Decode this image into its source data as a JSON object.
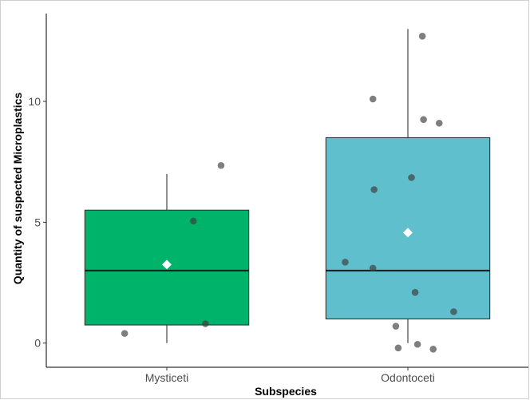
{
  "chart_data": {
    "type": "boxplot",
    "title": "",
    "xlabel": "Subspecies",
    "ylabel": "Quantity of suspected Microplastics",
    "ylim": [
      -1,
      13.8
    ],
    "yticks": [
      0,
      5,
      10
    ],
    "categories": [
      "Mysticeti",
      "Odontoceti"
    ],
    "boxes": [
      {
        "name": "Mysticeti",
        "color": "#00b36b",
        "whisker_low": 0,
        "q1": 0.75,
        "median": 3,
        "q3": 5.5,
        "whisker_high": 7,
        "mean": 3.25
      },
      {
        "name": "Odontoceti",
        "color": "#5fbfcc",
        "whisker_low": 0,
        "q1": 1,
        "median": 3,
        "q3": 8.5,
        "whisker_high": 13,
        "mean": 4.57
      }
    ],
    "points": [
      {
        "category": "Mysticeti",
        "x_offset": -0.35,
        "y": 0.4
      },
      {
        "category": "Mysticeti",
        "x_offset": 0.22,
        "y": 5.05
      },
      {
        "category": "Mysticeti",
        "x_offset": 0.32,
        "y": 0.8
      },
      {
        "category": "Mysticeti",
        "x_offset": 0.45,
        "y": 7.35
      },
      {
        "category": "Odontoceti",
        "x_offset": -0.52,
        "y": 3.35
      },
      {
        "category": "Odontoceti",
        "x_offset": -0.29,
        "y": 10.1
      },
      {
        "category": "Odontoceti",
        "x_offset": -0.28,
        "y": 6.35
      },
      {
        "category": "Odontoceti",
        "x_offset": -0.29,
        "y": 3.1
      },
      {
        "category": "Odontoceti",
        "x_offset": -0.1,
        "y": 0.7
      },
      {
        "category": "Odontoceti",
        "x_offset": -0.08,
        "y": -0.2
      },
      {
        "category": "Odontoceti",
        "x_offset": 0.03,
        "y": 6.85
      },
      {
        "category": "Odontoceti",
        "x_offset": 0.06,
        "y": 2.1
      },
      {
        "category": "Odontoceti",
        "x_offset": 0.08,
        "y": -0.05
      },
      {
        "category": "Odontoceti",
        "x_offset": 0.12,
        "y": 12.7
      },
      {
        "category": "Odontoceti",
        "x_offset": 0.13,
        "y": 9.25
      },
      {
        "category": "Odontoceti",
        "x_offset": 0.21,
        "y": -0.25
      },
      {
        "category": "Odontoceti",
        "x_offset": 0.26,
        "y": 9.1
      },
      {
        "category": "Odontoceti",
        "x_offset": 0.38,
        "y": 1.3
      }
    ],
    "point_color": "#3a3a3a",
    "mean_marker_color": "#ffffff",
    "grid": false,
    "legend": "none"
  }
}
